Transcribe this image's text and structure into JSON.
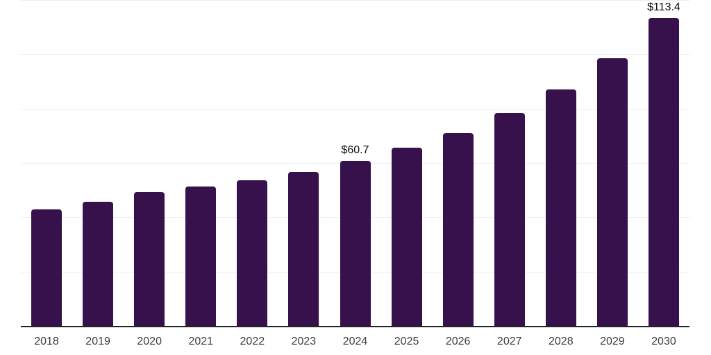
{
  "chart_data": {
    "type": "bar",
    "title": "",
    "xlabel": "",
    "ylabel": "",
    "categories": [
      "2018",
      "2019",
      "2020",
      "2021",
      "2022",
      "2023",
      "2024",
      "2025",
      "2026",
      "2027",
      "2028",
      "2029",
      "2030"
    ],
    "values": [
      43.0,
      45.7,
      49.4,
      51.4,
      53.6,
      56.8,
      60.7,
      65.6,
      71.0,
      78.4,
      87.1,
      98.6,
      113.4
    ],
    "data_labels": {
      "2024": "$60.7",
      "2030": "$113.4"
    },
    "ylim": [
      0,
      120
    ],
    "gridline_interval": 20,
    "grid": true,
    "legend": "none",
    "colors": {
      "bar": "#36114C",
      "gridline": "#ededed",
      "axis_line": "#212121",
      "axis_label": "#3d3d3d",
      "data_label": "#0d0d0d",
      "background": "#ffffff"
    }
  }
}
